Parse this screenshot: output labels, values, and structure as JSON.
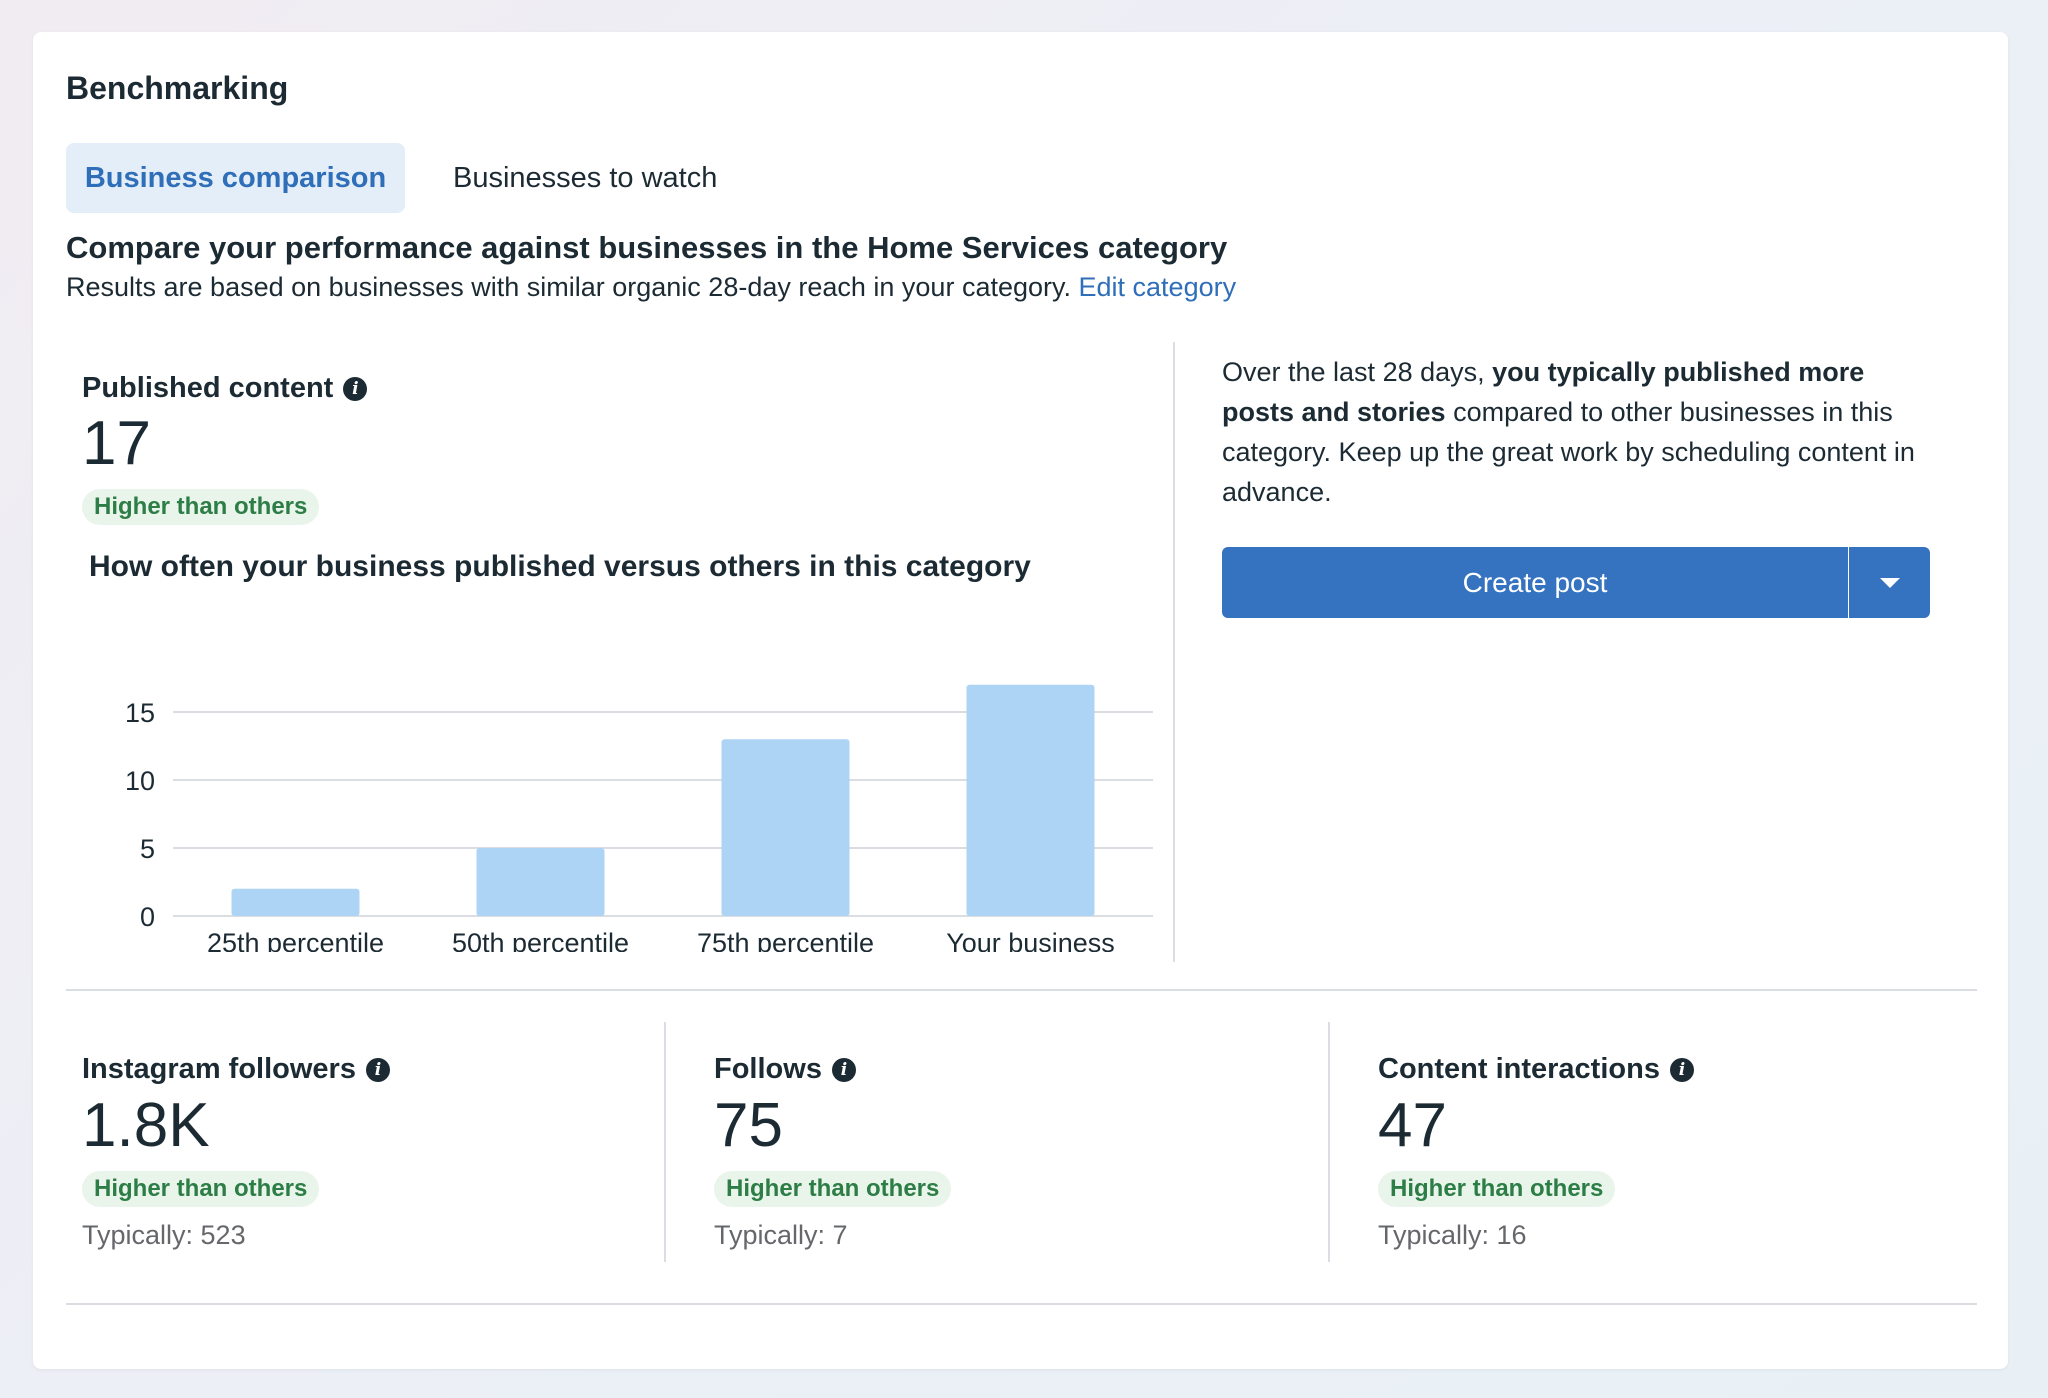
{
  "card": {
    "title": "Benchmarking"
  },
  "tabs": [
    {
      "label": "Business comparison",
      "active": true
    },
    {
      "label": "Businesses to watch",
      "active": false
    }
  ],
  "intro": {
    "headline": "Compare your performance against businesses in the Home Services category",
    "subline": "Results are based on businesses with similar organic 28-day reach in your category.",
    "edit_link": "Edit category"
  },
  "published": {
    "label": "Published content",
    "value": "17",
    "badge": "Higher than others",
    "chart_title": "How often your business published versus others in this category"
  },
  "chart_data": {
    "type": "bar",
    "categories": [
      "25th percentile",
      "50th percentile",
      "75th percentile",
      "Your business"
    ],
    "values": [
      2,
      5,
      13,
      17
    ],
    "yticks": [
      0,
      5,
      10,
      15
    ],
    "ylim": [
      0,
      17
    ],
    "bar_color": "#aed4f5",
    "grid": true
  },
  "summary": {
    "part1": "Over the last 28 days, ",
    "bold": "you typically published more posts and stories",
    "part2": " compared to other businesses in this category. Keep up the great work by scheduling content in advance."
  },
  "create_post": {
    "label": "Create post",
    "color": "#3573c1"
  },
  "metrics": [
    {
      "label": "Instagram followers",
      "value": "1.8K",
      "badge": "Higher than others",
      "typically": "Typically: 523"
    },
    {
      "label": "Follows",
      "value": "75",
      "badge": "Higher than others",
      "typically": "Typically: 7"
    },
    {
      "label": "Content interactions",
      "value": "47",
      "badge": "Higher than others",
      "typically": "Typically: 16"
    }
  ],
  "icons": {
    "info": "info-icon",
    "dropdown": "caret-down-icon"
  }
}
